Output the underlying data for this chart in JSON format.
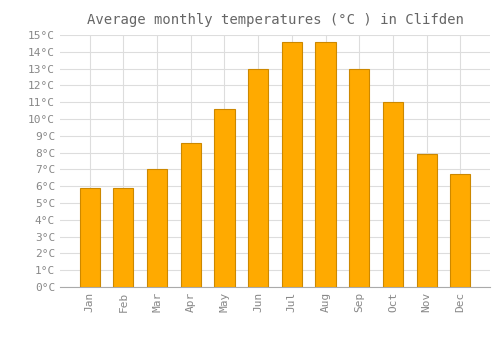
{
  "title": "Average monthly temperatures (°C ) in Clifden",
  "months": [
    "Jan",
    "Feb",
    "Mar",
    "Apr",
    "May",
    "Jun",
    "Jul",
    "Aug",
    "Sep",
    "Oct",
    "Nov",
    "Dec"
  ],
  "values": [
    5.9,
    5.9,
    7.0,
    8.6,
    10.6,
    13.0,
    14.6,
    14.6,
    13.0,
    11.0,
    7.9,
    6.7
  ],
  "bar_color": "#FFAA00",
  "bar_edge_color": "#CC8800",
  "background_color": "#FFFFFF",
  "grid_color": "#DDDDDD",
  "text_color": "#888888",
  "title_color": "#666666",
  "ylim": [
    0,
    15
  ],
  "ytick_step": 1,
  "title_fontsize": 10,
  "tick_fontsize": 8,
  "font_family": "monospace"
}
